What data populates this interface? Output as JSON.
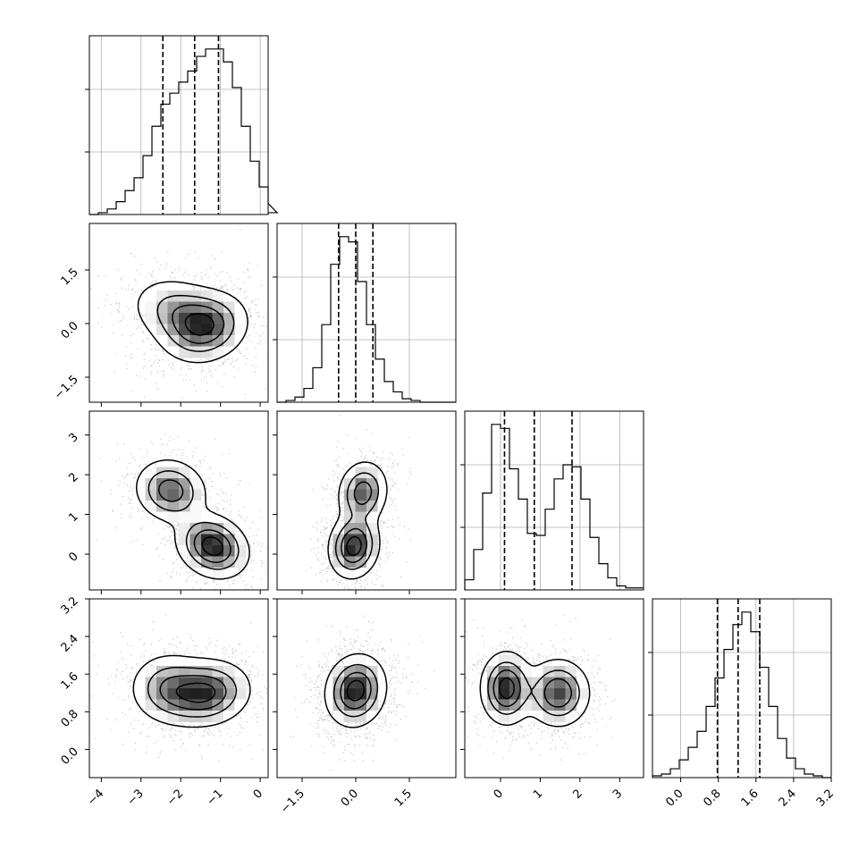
{
  "chart_data": {
    "type": "corner",
    "variables": [
      {
        "range": [
          -4.3,
          0.2
        ],
        "ticks": [
          -4,
          -3,
          -2,
          -1,
          0
        ],
        "tick_labels": [
          "−4",
          "−3",
          "−2",
          "−1",
          "0"
        ],
        "quantiles": [
          -2.45,
          -1.65,
          -1.05
        ],
        "hist_bin_width": 0.225,
        "hist_bins": [
          0,
          0.01,
          0.03,
          0.07,
          0.13,
          0.2,
          0.32,
          0.48,
          0.6,
          0.66,
          0.72,
          0.78,
          0.86,
          0.9,
          0.9,
          0.83,
          0.69,
          0.48,
          0.29,
          0.15,
          0.06,
          0.01
        ]
      },
      {
        "range": [
          -2.2,
          2.8
        ],
        "ticks": [
          -1.5,
          0.0,
          1.5
        ],
        "tick_labels": [
          "−1.5",
          "0.0",
          "1.5"
        ],
        "quantiles": [
          -0.48,
          0.0,
          0.48
        ],
        "hist_bin_width": 0.25,
        "hist_bins": [
          0,
          0.01,
          0.03,
          0.08,
          0.2,
          0.45,
          0.8,
          0.96,
          0.93,
          0.7,
          0.45,
          0.25,
          0.12,
          0.06,
          0.02,
          0.01,
          0,
          0,
          0,
          0
        ],
        "y_ticks": [
          -1.5,
          0.0,
          1.5
        ],
        "y_tick_labels": [
          "−1.5",
          "0.0",
          "1.5"
        ]
      },
      {
        "range": [
          -0.9,
          3.6
        ],
        "ticks": [
          0,
          1,
          2,
          3
        ],
        "tick_labels": [
          "0",
          "1",
          "2",
          "3"
        ],
        "quantiles": [
          0.1,
          0.85,
          1.8
        ],
        "hist_bin_width": 0.225,
        "hist_bins": [
          0.05,
          0.2,
          0.48,
          0.82,
          0.8,
          0.6,
          0.45,
          0.28,
          0.27,
          0.4,
          0.55,
          0.62,
          0.61,
          0.45,
          0.26,
          0.13,
          0.06,
          0.02,
          0.01,
          0.01
        ],
        "y_ticks": [
          0,
          1,
          2,
          3
        ],
        "y_tick_labels": [
          "0",
          "1",
          "2",
          "3"
        ]
      },
      {
        "range": [
          -0.6,
          3.2
        ],
        "ticks": [
          0.0,
          0.8,
          1.6,
          2.4,
          3.2
        ],
        "tick_labels": [
          "0.0",
          "0.8",
          "1.6",
          "2.4",
          "3.2"
        ],
        "quantiles": [
          0.78,
          1.22,
          1.68
        ],
        "hist_bin_width": 0.19,
        "hist_bins": [
          0.01,
          0.02,
          0.05,
          0.1,
          0.17,
          0.26,
          0.4,
          0.56,
          0.72,
          0.86,
          0.93,
          0.82,
          0.62,
          0.4,
          0.22,
          0.11,
          0.05,
          0.02,
          0.01,
          0.0
        ],
        "y_ticks": [
          0.0,
          0.8,
          1.6,
          2.4,
          3.2
        ],
        "y_tick_labels": [
          "0.0",
          "0.8",
          "1.6",
          "2.4",
          "3.2"
        ]
      }
    ],
    "pairs": [
      {
        "x": 0,
        "y": 1,
        "peaks": [
          {
            "cx": -1.4,
            "cy": -0.1,
            "sx": 0.55,
            "sy": 0.5,
            "rho": 0.15,
            "w": 1.0
          },
          {
            "cx": -2.1,
            "cy": 0.35,
            "sx": 0.6,
            "sy": 0.5,
            "rho": -0.2,
            "w": 0.55
          }
        ]
      },
      {
        "x": 0,
        "y": 2,
        "peaks": [
          {
            "cx": -1.2,
            "cy": 0.2,
            "sx": 0.45,
            "sy": 0.4,
            "rho": -0.2,
            "w": 1.0
          },
          {
            "cx": -2.25,
            "cy": 1.6,
            "sx": 0.45,
            "sy": 0.4,
            "rho": -0.1,
            "w": 0.75
          }
        ]
      },
      {
        "x": 0,
        "y": 3,
        "peaks": [
          {
            "cx": -1.35,
            "cy": 1.2,
            "sx": 0.55,
            "sy": 0.35,
            "rho": 0.1,
            "w": 1.0
          },
          {
            "cx": -2.3,
            "cy": 1.3,
            "sx": 0.5,
            "sy": 0.38,
            "rho": 0.0,
            "w": 0.65
          }
        ]
      },
      {
        "x": 1,
        "y": 2,
        "peaks": [
          {
            "cx": -0.05,
            "cy": 0.2,
            "sx": 0.35,
            "sy": 0.4,
            "rho": 0.1,
            "w": 1.0
          },
          {
            "cx": 0.2,
            "cy": 1.55,
            "sx": 0.35,
            "sy": 0.4,
            "rho": 0.1,
            "w": 0.75
          }
        ]
      },
      {
        "x": 1,
        "y": 3,
        "peaks": [
          {
            "cx": 0.0,
            "cy": 1.25,
            "sx": 0.42,
            "sy": 0.38,
            "rho": 0.1,
            "w": 1.0
          }
        ]
      },
      {
        "x": 2,
        "y": 3,
        "peaks": [
          {
            "cx": 0.15,
            "cy": 1.3,
            "sx": 0.32,
            "sy": 0.38,
            "rho": 0.0,
            "w": 1.0
          },
          {
            "cx": 1.45,
            "cy": 1.2,
            "sx": 0.4,
            "sy": 0.36,
            "rho": 0.0,
            "w": 0.85
          }
        ]
      }
    ]
  }
}
